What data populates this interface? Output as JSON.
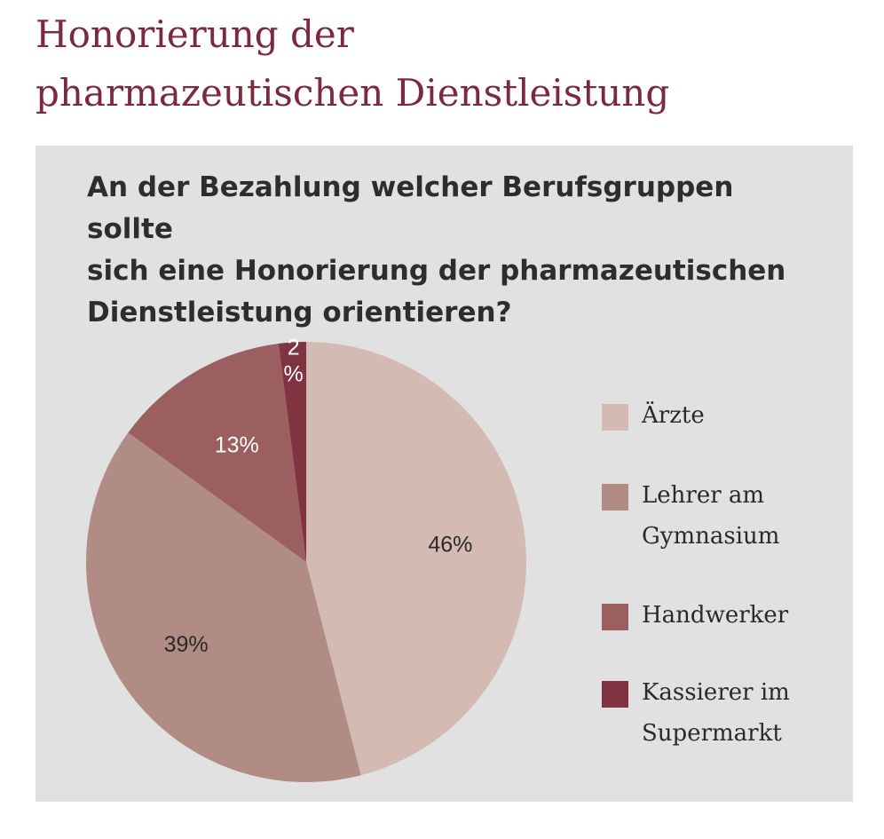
{
  "page": {
    "title_line1": "Honorierung der",
    "title_line2": "pharmazeutischen Dienstleistung"
  },
  "chart_data": {
    "type": "pie",
    "title": "An der Bezahlung welcher Berufsgruppen sollte sich eine Honorierung der pharmazeutischen Dienstleistung orientieren?",
    "title_lines": [
      "An der Bezahlung welcher Berufsgruppen sollte",
      "sich eine Honorierung der pharmazeutischen",
      "Dienstleistung orientieren?"
    ],
    "slices": [
      {
        "label": "Ärzte",
        "label_lines": [
          "Ärzte"
        ],
        "value": 46,
        "value_label": "46%",
        "color": "#d3bab2"
      },
      {
        "label": "Lehrer am Gymnasium",
        "label_lines": [
          "Lehrer am",
          "Gymnasium"
        ],
        "value": 39,
        "value_label": "39%",
        "color": "#b08c85"
      },
      {
        "label": "Handwerker",
        "label_lines": [
          "Handwerker"
        ],
        "value": 13,
        "value_label": "13%",
        "color": "#9a5f5e"
      },
      {
        "label": "Kassierer im Supermarkt",
        "label_lines": [
          "Kassierer im",
          "Supermarkt"
        ],
        "value": 2,
        "value_label_lines": [
          "2",
          "%"
        ],
        "color": "#803340"
      }
    ],
    "legend_position": "right"
  }
}
